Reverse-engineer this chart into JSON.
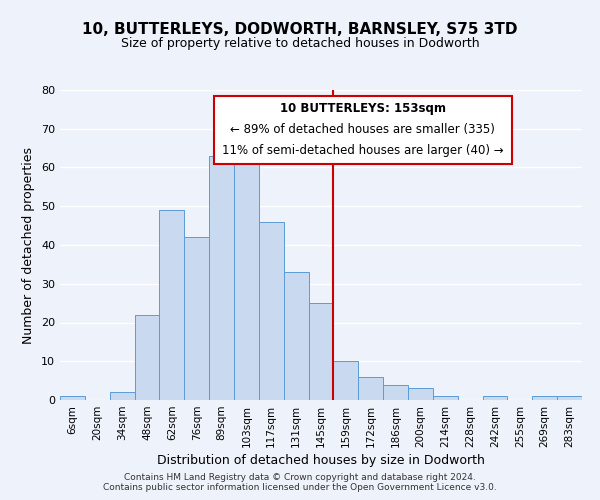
{
  "title": "10, BUTTERLEYS, DODWORTH, BARNSLEY, S75 3TD",
  "subtitle": "Size of property relative to detached houses in Dodworth",
  "xlabel": "Distribution of detached houses by size in Dodworth",
  "ylabel": "Number of detached properties",
  "bar_labels": [
    "6sqm",
    "20sqm",
    "34sqm",
    "48sqm",
    "62sqm",
    "76sqm",
    "89sqm",
    "103sqm",
    "117sqm",
    "131sqm",
    "145sqm",
    "159sqm",
    "172sqm",
    "186sqm",
    "200sqm",
    "214sqm",
    "228sqm",
    "242sqm",
    "255sqm",
    "269sqm",
    "283sqm"
  ],
  "bar_values": [
    1,
    0,
    2,
    22,
    49,
    42,
    63,
    65,
    46,
    33,
    25,
    10,
    6,
    4,
    3,
    1,
    0,
    1,
    0,
    1,
    1
  ],
  "bar_color": "#c8d9f0",
  "bar_edge_color": "#5b9bd5",
  "ylim": [
    0,
    80
  ],
  "yticks": [
    0,
    10,
    20,
    30,
    40,
    50,
    60,
    70,
    80
  ],
  "vline_x": 10.5,
  "vline_color": "#cc0000",
  "annotation_title": "10 BUTTERLEYS: 153sqm",
  "annotation_line1": "← 89% of detached houses are smaller (335)",
  "annotation_line2": "11% of semi-detached houses are larger (40) →",
  "annotation_box_color": "#cc0000",
  "footer1": "Contains HM Land Registry data © Crown copyright and database right 2024.",
  "footer2": "Contains public sector information licensed under the Open Government Licence v3.0.",
  "background_color": "#eef2fa",
  "grid_color": "#ffffff"
}
